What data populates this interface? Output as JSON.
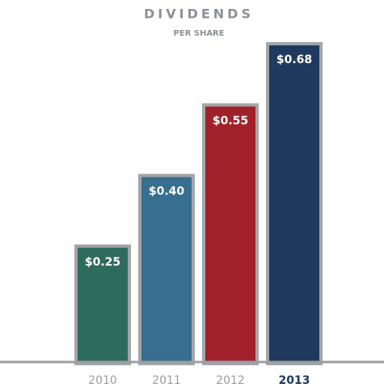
{
  "chart_data": {
    "type": "bar",
    "title": "DIVIDENDS",
    "subtitle": "PER SHARE",
    "categories": [
      "2010",
      "2011",
      "2012",
      "2013"
    ],
    "values": [
      0.25,
      0.4,
      0.55,
      0.68
    ],
    "value_labels": [
      "$0.25",
      "$0.40",
      "$0.55",
      "$0.68"
    ],
    "colors": [
      "#2f6b5d",
      "#386e8f",
      "#a1212b",
      "#1f3a5e"
    ],
    "highlight_category": "2013"
  }
}
